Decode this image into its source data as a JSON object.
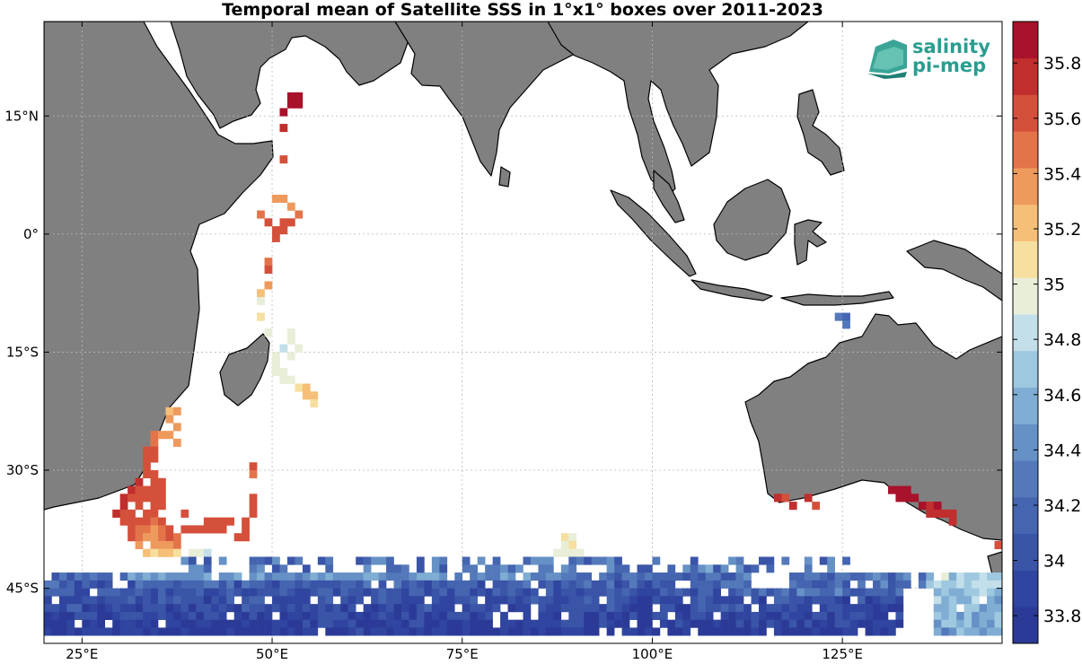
{
  "title": "Temporal mean of Satellite SSS in 1°x1° boxes over 2011-2023",
  "logo": {
    "line1": "salinity",
    "line2": "pi-mep",
    "color": "#2a9d8f"
  },
  "map": {
    "lon_range": [
      20,
      146
    ],
    "lat_range": [
      -52,
      27
    ],
    "land_color": "#808080",
    "ocean_color": "#ffffff",
    "grid": true,
    "x_ticks": [
      {
        "value": 25,
        "label": "25°E"
      },
      {
        "value": 50,
        "label": "50°E"
      },
      {
        "value": 75,
        "label": "75°E"
      },
      {
        "value": 100,
        "label": "100°E"
      },
      {
        "value": 125,
        "label": "125°E"
      }
    ],
    "y_ticks": [
      {
        "value": 15,
        "label": "15°N"
      },
      {
        "value": 0,
        "label": "0°"
      },
      {
        "value": -15,
        "label": "15°S"
      },
      {
        "value": -30,
        "label": "30°S"
      },
      {
        "value": -45,
        "label": "45°S"
      }
    ]
  },
  "colorbar": {
    "min": 33.7,
    "max": 35.95,
    "colors": [
      "#2b3a97",
      "#30459f",
      "#3a54a8",
      "#4565b0",
      "#5479ba",
      "#6691c6",
      "#7fadd3",
      "#9ec8e0",
      "#c3dfea",
      "#e8eed8",
      "#f6df9f",
      "#f6bf78",
      "#ee9a5d",
      "#e3744a",
      "#d4503b",
      "#c02f2e",
      "#a8122a"
    ],
    "ticks": [
      {
        "value": 33.8,
        "label": "33.8"
      },
      {
        "value": 34.0,
        "label": "34"
      },
      {
        "value": 34.2,
        "label": "34.2"
      },
      {
        "value": 34.4,
        "label": "34.4"
      },
      {
        "value": 34.6,
        "label": "34.6"
      },
      {
        "value": 34.8,
        "label": "34.8"
      },
      {
        "value": 35.0,
        "label": "35"
      },
      {
        "value": 35.2,
        "label": "35.2"
      },
      {
        "value": 35.4,
        "label": "35.4"
      },
      {
        "value": 35.6,
        "label": "35.6"
      },
      {
        "value": 35.8,
        "label": "35.8"
      }
    ]
  },
  "chart_data": {
    "type": "heatmap",
    "title": "Temporal mean of Satellite SSS in 1°x1° boxes over 2011-2023",
    "units": "",
    "cell_size_deg": 1,
    "cells": [
      [
        52,
        17,
        35.9
      ],
      [
        53,
        17,
        35.9
      ],
      [
        52,
        16,
        35.9
      ],
      [
        53,
        16,
        35.9
      ],
      [
        51,
        15,
        35.9
      ],
      [
        51,
        13,
        35.7
      ],
      [
        51,
        9,
        35.6
      ],
      [
        50,
        4,
        35.3
      ],
      [
        51,
        4,
        35.3
      ],
      [
        52,
        3,
        35.4
      ],
      [
        53,
        2,
        35.5
      ],
      [
        48,
        2,
        35.5
      ],
      [
        49,
        1,
        35.6
      ],
      [
        51,
        1,
        35.6
      ],
      [
        52,
        1,
        35.6
      ],
      [
        50,
        0,
        35.6
      ],
      [
        51,
        0,
        35.6
      ],
      [
        50,
        -1,
        35.6
      ],
      [
        49,
        -4,
        35.5
      ],
      [
        49,
        -5,
        35.6
      ],
      [
        49,
        -7,
        35.3
      ],
      [
        48,
        -8,
        35.2
      ],
      [
        48,
        -9,
        35.0
      ],
      [
        48,
        -11,
        35.1
      ],
      [
        49,
        -13,
        35.0
      ],
      [
        52,
        -13,
        34.95
      ],
      [
        52,
        -14,
        34.9
      ],
      [
        51,
        -15,
        34.85
      ],
      [
        53,
        -15,
        34.9
      ],
      [
        52,
        -16,
        34.9
      ],
      [
        50,
        -16,
        34.95
      ],
      [
        50,
        -17,
        35.0
      ],
      [
        51,
        -18,
        34.9
      ],
      [
        50,
        -18,
        34.95
      ],
      [
        51,
        -19,
        34.95
      ],
      [
        52,
        -19,
        34.95
      ],
      [
        53,
        -20,
        35.1
      ],
      [
        54,
        -20,
        35.2
      ],
      [
        54,
        -21,
        35.2
      ],
      [
        55,
        -21,
        35.2
      ],
      [
        55,
        -22,
        35.1
      ],
      [
        36,
        -23,
        35.2
      ],
      [
        37,
        -23,
        35.3
      ],
      [
        36,
        -24,
        35.4
      ],
      [
        37,
        -25,
        35.4
      ],
      [
        34,
        -26,
        35.5
      ],
      [
        35,
        -26,
        35.4
      ],
      [
        36,
        -26,
        35.3
      ],
      [
        34,
        -27,
        35.5
      ],
      [
        37,
        -27,
        35.4
      ],
      [
        33,
        -28,
        35.6
      ],
      [
        34,
        -28,
        35.6
      ],
      [
        33,
        -29,
        35.6
      ],
      [
        34,
        -29,
        35.6
      ],
      [
        33,
        -30,
        35.6
      ],
      [
        47,
        -30,
        35.6
      ],
      [
        33,
        -31,
        35.6
      ],
      [
        34,
        -31,
        35.6
      ],
      [
        47,
        -31,
        35.5
      ],
      [
        32,
        -32,
        35.7
      ],
      [
        34,
        -32,
        35.6
      ],
      [
        35,
        -32,
        35.6
      ],
      [
        31,
        -33,
        35.7
      ],
      [
        32,
        -33,
        35.6
      ],
      [
        33,
        -33,
        35.6
      ],
      [
        34,
        -33,
        35.6
      ],
      [
        35,
        -33,
        35.6
      ],
      [
        30,
        -34,
        35.7
      ],
      [
        31,
        -34,
        35.6
      ],
      [
        32,
        -34,
        35.6
      ],
      [
        33,
        -34,
        35.6
      ],
      [
        34,
        -34,
        35.6
      ],
      [
        35,
        -34,
        35.6
      ],
      [
        47,
        -34,
        35.6
      ],
      [
        30,
        -35,
        35.7
      ],
      [
        32,
        -35,
        35.6
      ],
      [
        34,
        -35,
        35.6
      ],
      [
        35,
        -35,
        35.6
      ],
      [
        47,
        -35,
        35.6
      ],
      [
        29,
        -36,
        35.7
      ],
      [
        30,
        -36,
        35.6
      ],
      [
        31,
        -36,
        35.6
      ],
      [
        33,
        -36,
        35.6
      ],
      [
        34,
        -36,
        35.6
      ],
      [
        38,
        -36,
        35.6
      ],
      [
        47,
        -36,
        35.6
      ],
      [
        30,
        -37,
        35.6
      ],
      [
        31,
        -37,
        35.6
      ],
      [
        32,
        -37,
        35.6
      ],
      [
        33,
        -37,
        35.6
      ],
      [
        34,
        -37,
        35.5
      ],
      [
        35,
        -37,
        35.6
      ],
      [
        41,
        -37,
        35.6
      ],
      [
        42,
        -37,
        35.6
      ],
      [
        43,
        -37,
        35.6
      ],
      [
        44,
        -37,
        35.6
      ],
      [
        46,
        -37,
        35.6
      ],
      [
        31,
        -38,
        35.6
      ],
      [
        32,
        -38,
        35.5
      ],
      [
        33,
        -38,
        35.5
      ],
      [
        34,
        -38,
        35.4
      ],
      [
        35,
        -38,
        35.5
      ],
      [
        36,
        -38,
        35.6
      ],
      [
        38,
        -38,
        35.6
      ],
      [
        39,
        -38,
        35.6
      ],
      [
        40,
        -38,
        35.6
      ],
      [
        41,
        -38,
        35.6
      ],
      [
        42,
        -38,
        35.6
      ],
      [
        43,
        -38,
        35.6
      ],
      [
        46,
        -38,
        35.6
      ],
      [
        31,
        -39,
        35.6
      ],
      [
        32,
        -39,
        35.5
      ],
      [
        33,
        -39,
        35.4
      ],
      [
        34,
        -39,
        35.4
      ],
      [
        35,
        -39,
        35.5
      ],
      [
        36,
        -39,
        35.6
      ],
      [
        37,
        -39,
        35.5
      ],
      [
        45,
        -39,
        35.6
      ],
      [
        46,
        -39,
        35.6
      ],
      [
        32,
        -40,
        35.4
      ],
      [
        34,
        -40,
        35.3
      ],
      [
        35,
        -40,
        35.3
      ],
      [
        36,
        -40,
        35.4
      ],
      [
        37,
        -40,
        35.5
      ],
      [
        33,
        -41,
        35.2
      ],
      [
        34,
        -41,
        35.1
      ],
      [
        35,
        -41,
        35.2
      ],
      [
        36,
        -41,
        35.2
      ],
      [
        37,
        -41,
        35.1
      ],
      [
        39,
        -41,
        35.0
      ],
      [
        40,
        -41,
        34.95
      ],
      [
        41,
        -41,
        34.8
      ],
      [
        88,
        -39,
        35.1
      ],
      [
        89,
        -39,
        35.0
      ],
      [
        88,
        -40,
        34.95
      ],
      [
        89,
        -40,
        35.1
      ],
      [
        87,
        -41,
        34.95
      ],
      [
        88,
        -41,
        35.0
      ],
      [
        89,
        -41,
        34.9
      ],
      [
        90,
        -41,
        34.9
      ],
      [
        131,
        -33,
        35.9
      ],
      [
        132,
        -33,
        35.9
      ],
      [
        133,
        -33,
        35.9
      ],
      [
        132,
        -34,
        35.9
      ],
      [
        133,
        -34,
        35.9
      ],
      [
        134,
        -34,
        35.9
      ],
      [
        135,
        -35,
        35.9
      ],
      [
        136,
        -35,
        35.8
      ],
      [
        137,
        -35,
        35.9
      ],
      [
        136,
        -36,
        35.8
      ],
      [
        137,
        -36,
        35.7
      ],
      [
        138,
        -36,
        35.7
      ],
      [
        139,
        -36,
        35.7
      ],
      [
        139,
        -37,
        35.7
      ],
      [
        145,
        -40,
        35.6
      ],
      [
        116,
        -34,
        35.8
      ],
      [
        117,
        -34,
        35.6
      ],
      [
        120,
        -34,
        35.7
      ],
      [
        121,
        -35,
        35.6
      ],
      [
        118,
        -35,
        35.8
      ],
      [
        124,
        -11,
        34.3
      ],
      [
        125,
        -11,
        34.1
      ],
      [
        125,
        -12,
        34.3
      ]
    ]
  }
}
